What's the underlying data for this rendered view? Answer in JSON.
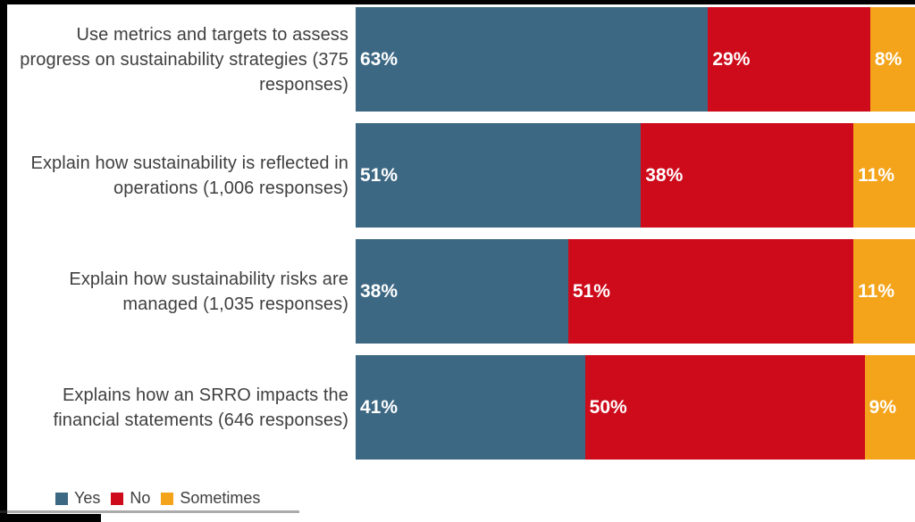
{
  "chart_data": {
    "type": "bar",
    "orientation": "horizontal",
    "stacked": true,
    "unit": "%",
    "xlim": [
      0,
      100
    ],
    "grid": false,
    "legend_position": "bottom-left",
    "value_labels": "inside-segment-start-white-bold",
    "categories": [
      "Use metrics and targets to assess progress on sustainability strategies (375 responses)",
      "Explain how sustainability is reflected in operations (1,006 responses)",
      "Explain how sustainability risks are managed (1,035 responses)",
      "Explains how an SRRO impacts the financial statements (646 responses)"
    ],
    "series": [
      {
        "name": "Yes",
        "color": "#3D6883",
        "values": [
          63,
          51,
          38,
          41
        ]
      },
      {
        "name": "No",
        "color": "#CE0B1B",
        "values": [
          29,
          38,
          51,
          50
        ]
      },
      {
        "name": "Sometimes",
        "color": "#F4A41B",
        "values": [
          8,
          11,
          11,
          9
        ]
      }
    ]
  },
  "colors": {
    "background": "#FFFFFF",
    "letterbox": "#000000",
    "category_text": "#3F3F3F",
    "value_text": "#FFFFFF",
    "legend_text": "#3F3F3F"
  }
}
